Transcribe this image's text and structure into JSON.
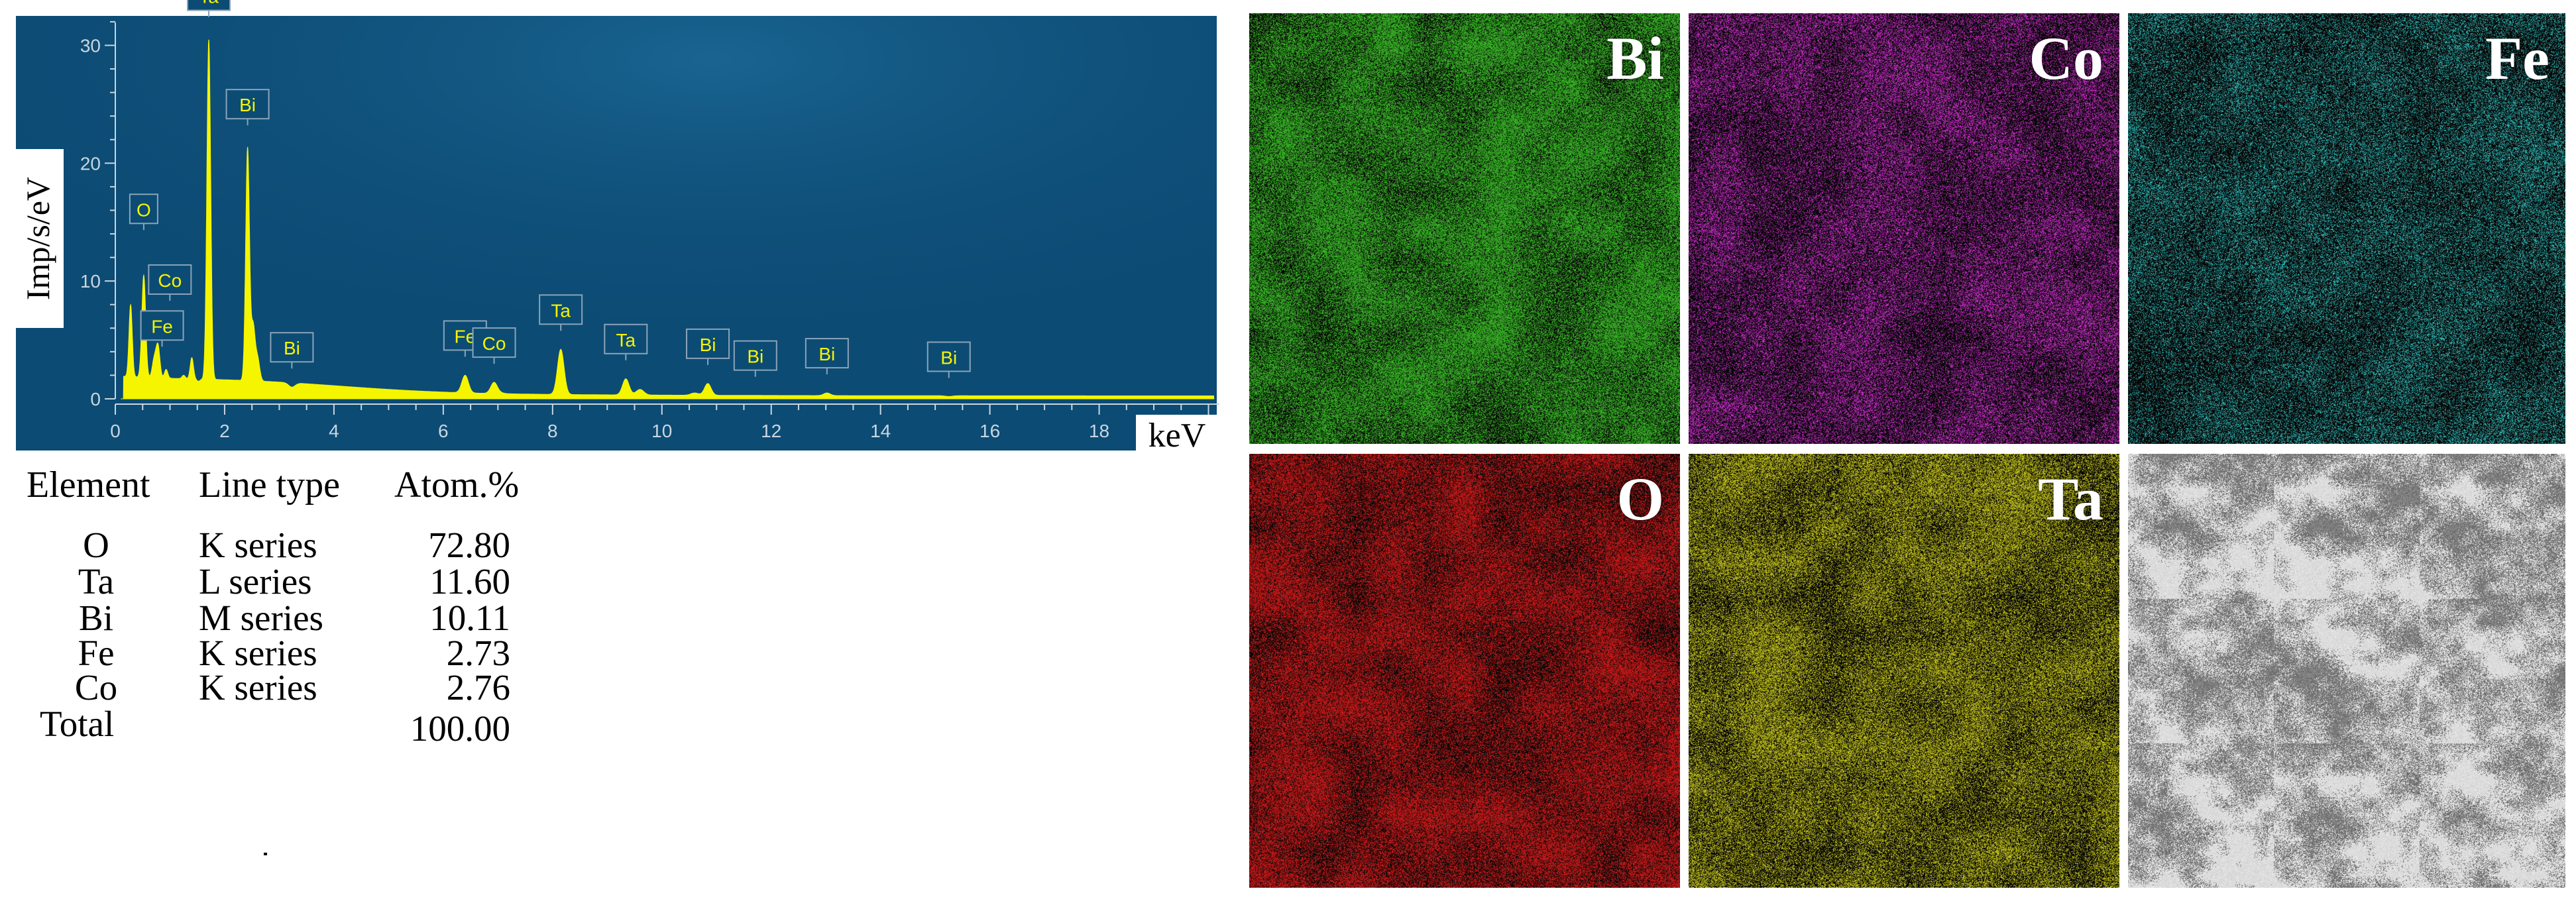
{
  "chart_data": {
    "type": "line",
    "title": "",
    "xlabel": "keV",
    "ylabel": "Imp/s/eV",
    "xlim": [
      0,
      20.2
    ],
    "ylim": [
      0,
      32.5
    ],
    "x_ticks": [
      0,
      2,
      4,
      6,
      8,
      10,
      12,
      14,
      16,
      18
    ],
    "y_ticks": [
      0,
      10,
      20,
      30
    ],
    "grid": false,
    "background": "#0c4b74",
    "fill_color": "#f5f500",
    "peaks": [
      {
        "label": "O",
        "x": 0.52,
        "y": 10.5
      },
      {
        "label": "Co",
        "x": 0.78,
        "y": 4.5
      },
      {
        "label": "Fe",
        "x": 0.71,
        "y": 3.3
      },
      {
        "label": "Ta",
        "x": 1.71,
        "y": 30.5
      },
      {
        "label": "Bi",
        "x": 2.42,
        "y": 21.3
      },
      {
        "label": "Bi",
        "x": 3.23,
        "y": 1.0
      },
      {
        "label": "Fe",
        "x": 6.4,
        "y": 2.0
      },
      {
        "label": "Co",
        "x": 6.93,
        "y": 1.4
      },
      {
        "label": "Ta",
        "x": 8.15,
        "y": 4.2
      },
      {
        "label": "Ta",
        "x": 9.34,
        "y": 1.7
      },
      {
        "label": "Bi",
        "x": 10.84,
        "y": 1.3
      },
      {
        "label": "Bi",
        "x": 11.71,
        "y": 0.3
      },
      {
        "label": "Bi",
        "x": 13.02,
        "y": 0.5
      },
      {
        "label": "Bi",
        "x": 15.25,
        "y": 0.2
      }
    ]
  },
  "composition": {
    "headers": [
      "Element",
      "Line type",
      "Atom.%"
    ],
    "rows": [
      {
        "element": "O",
        "line_type": "K series",
        "atom_pct": "72.80"
      },
      {
        "element": "Ta",
        "line_type": "L series",
        "atom_pct": "11.60"
      },
      {
        "element": "Bi",
        "line_type": "M series",
        "atom_pct": "10.11"
      },
      {
        "element": "Fe",
        "line_type": "K series",
        "atom_pct": "2.73"
      },
      {
        "element": "Co",
        "line_type": "K series",
        "atom_pct": "2.76"
      }
    ],
    "total_label": "Total",
    "total_value": "100.00"
  },
  "maps": [
    {
      "label": "Bi",
      "color": "#3ec92a",
      "style": "green"
    },
    {
      "label": "Co",
      "color": "#e633e6",
      "style": "magenta"
    },
    {
      "label": "Fe",
      "color": "#38d6d6",
      "style": "cyan"
    },
    {
      "label": "O",
      "color": "#e01d1d",
      "style": "red"
    },
    {
      "label": "Ta",
      "color": "#d8d820",
      "style": "yellow"
    },
    {
      "label": "",
      "color": "#9a9a9a",
      "style": "sem"
    }
  ]
}
